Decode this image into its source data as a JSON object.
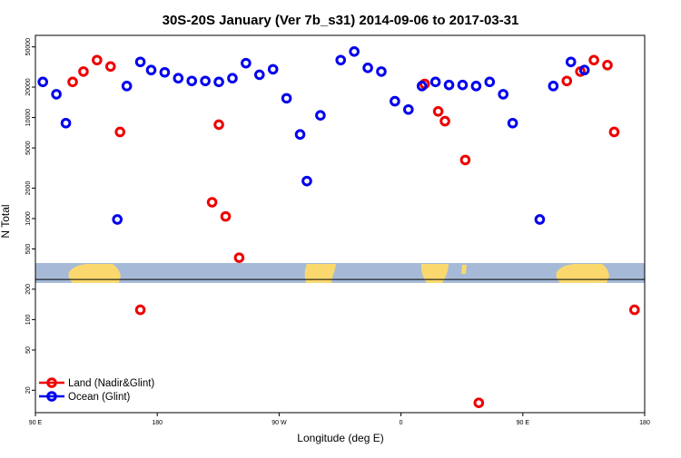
{
  "chart_data": {
    "type": "scatter",
    "title": "30S-20S January (Ver 7b_s31)   2014-09-06 to 2017-03-31",
    "xlabel": "Longitude (deg E)",
    "ylabel": "N Total",
    "y_scale": "log",
    "xlim": [
      90,
      540
    ],
    "ylim": [
      12,
      65000
    ],
    "x_ticks": [
      {
        "value": 90,
        "label": "90 E"
      },
      {
        "value": 180,
        "label": "180"
      },
      {
        "value": 270,
        "label": "90 W"
      },
      {
        "value": 360,
        "label": "0"
      },
      {
        "value": 450,
        "label": "90 E"
      },
      {
        "value": 540,
        "label": "180"
      }
    ],
    "y_ticks": [
      {
        "value": 20,
        "label": "20"
      },
      {
        "value": 50,
        "label": "50"
      },
      {
        "value": 100,
        "label": "100"
      },
      {
        "value": 200,
        "label": "200"
      },
      {
        "value": 500,
        "label": "500"
      },
      {
        "value": 1000,
        "label": "1000"
      },
      {
        "value": 2000,
        "label": "2000"
      },
      {
        "value": 5000,
        "label": "5000"
      },
      {
        "value": 10000,
        "label": "10000"
      },
      {
        "value": 20000,
        "label": "20000"
      },
      {
        "value": 50000,
        "label": "50000"
      }
    ],
    "reference_line": 250,
    "legend": {
      "placement": "bottom-left"
    },
    "series": [
      {
        "name": "Land (Nadir&Glint)",
        "color": "#ee0000",
        "points": [
          [
            117.5,
            22500
          ],
          [
            125.5,
            28500
          ],
          [
            135.5,
            37000
          ],
          [
            145.5,
            32000
          ],
          [
            152.5,
            7200
          ],
          [
            167.5,
            125
          ],
          [
            220.5,
            1450
          ],
          [
            225.5,
            8500
          ],
          [
            230.5,
            1050
          ],
          [
            240.5,
            410
          ],
          [
            377.5,
            21500
          ],
          [
            387.5,
            11500
          ],
          [
            392.5,
            9200
          ],
          [
            407.5,
            3800
          ],
          [
            417.5,
            15
          ],
          [
            482.5,
            23000
          ],
          [
            492.5,
            28500
          ],
          [
            502.5,
            37000
          ],
          [
            512.5,
            33000
          ],
          [
            517.5,
            7200
          ],
          [
            532.5,
            125
          ]
        ]
      },
      {
        "name": "Ocean (Glint)",
        "color": "#0000ee",
        "points": [
          [
            95.5,
            22500
          ],
          [
            105.5,
            17000
          ],
          [
            112.5,
            8800
          ],
          [
            150.5,
            980
          ],
          [
            157.5,
            20500
          ],
          [
            167.5,
            35500
          ],
          [
            175.5,
            29500
          ],
          [
            185.5,
            28000
          ],
          [
            195.5,
            24500
          ],
          [
            205.5,
            23000
          ],
          [
            215.5,
            23000
          ],
          [
            225.5,
            22500
          ],
          [
            235.5,
            24500
          ],
          [
            245.5,
            34500
          ],
          [
            255.5,
            26500
          ],
          [
            265.5,
            30000
          ],
          [
            275.5,
            15500
          ],
          [
            285.5,
            6800
          ],
          [
            290.5,
            2350
          ],
          [
            300.5,
            10500
          ],
          [
            315.5,
            37000
          ],
          [
            325.5,
            45000
          ],
          [
            335.5,
            31000
          ],
          [
            345.5,
            28500
          ],
          [
            355.5,
            14500
          ],
          [
            365.5,
            12000
          ],
          [
            375.5,
            20500
          ],
          [
            385.5,
            22500
          ],
          [
            395.5,
            21000
          ],
          [
            405.5,
            21000
          ],
          [
            415.5,
            20500
          ],
          [
            425.5,
            22500
          ],
          [
            435.5,
            17000
          ],
          [
            442.5,
            8800
          ],
          [
            462.5,
            980
          ],
          [
            472.5,
            20500
          ],
          [
            485.5,
            35500
          ],
          [
            495.5,
            29500
          ]
        ]
      }
    ]
  }
}
